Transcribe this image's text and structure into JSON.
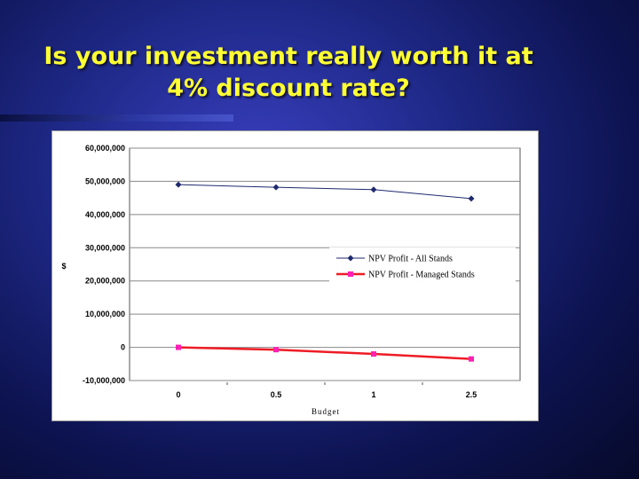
{
  "slide": {
    "title_line1": "Is your investment really worth it at",
    "title_line2": "4% discount rate?",
    "background_color": "#1f2a8a",
    "title_color": "#ffff33"
  },
  "chart_data": {
    "type": "line",
    "categories": [
      "0",
      "0.5",
      "1",
      "2.5"
    ],
    "series": [
      {
        "name": "NPV Profit - All Stands",
        "values": [
          49000000,
          48200000,
          47500000,
          44800000
        ],
        "color": "#1f2a6e",
        "marker": "diamond"
      },
      {
        "name": "NPV Profit - Managed Stands",
        "values": [
          0,
          -700000,
          -2000000,
          -3500000
        ],
        "color": "#ee1c24",
        "marker": "square"
      }
    ],
    "y_ticks": [
      "60,000,000",
      "50,000,000",
      "40,000,000",
      "30,000,000",
      "20,000,000",
      "10,000,000",
      "0",
      "-10,000,000"
    ],
    "ylim": [
      -10000000,
      60000000
    ],
    "xlabel": "Budget",
    "ylabel": "$",
    "grid": true,
    "legend_position": "center-right"
  }
}
